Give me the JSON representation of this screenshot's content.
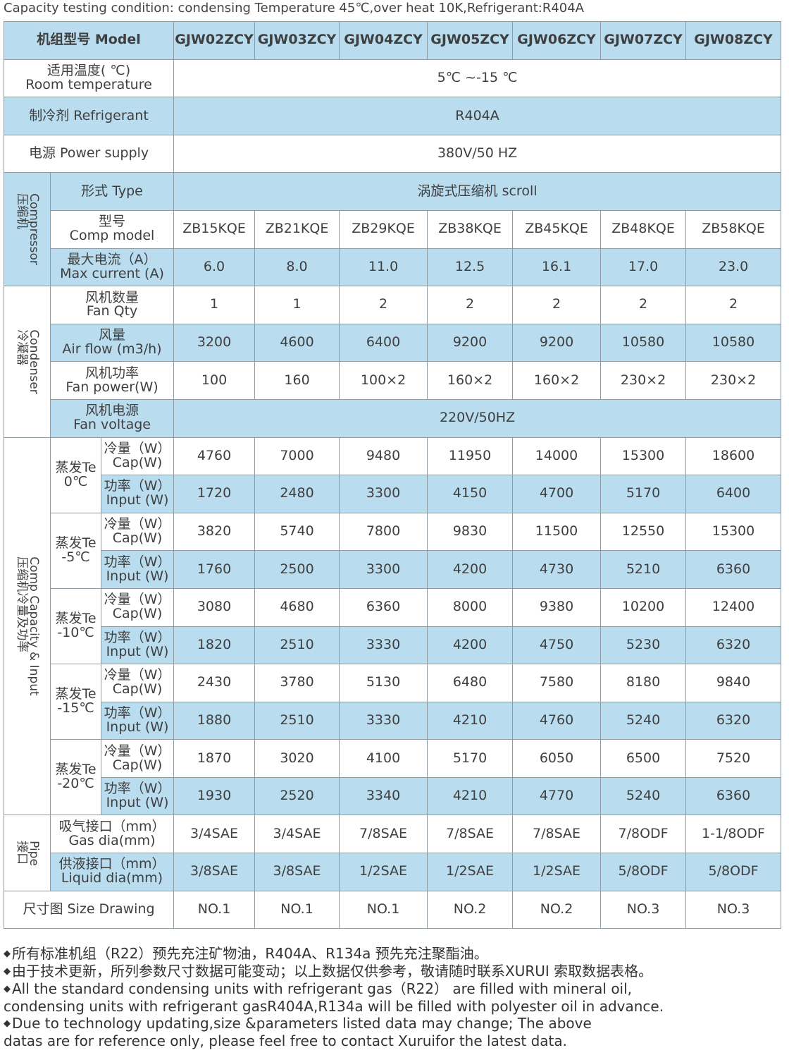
{
  "caption": "Capacity testing condition: condensing Temperature 45℃,over heat 10K,Refrigerant:R404A",
  "header": {
    "model_label": "机组型号  Model",
    "models": [
      "GJW02ZCY",
      "GJW03ZCY",
      "GJW04ZCY",
      "GJW05ZCY",
      "GJW06ZCY",
      "GJW07ZCY",
      "GJW08ZCY"
    ]
  },
  "general": {
    "room_temp": {
      "label_cn": "适用温度( ℃)",
      "label_en": "Room temperature",
      "value": "5℃ ~-15 ℃"
    },
    "refrigerant": {
      "label": "制冷剂 Refrigerant",
      "value": "R404A"
    },
    "power_supply": {
      "label": "电源  Power supply",
      "value": "380V/50 HZ"
    }
  },
  "compressor": {
    "group_cn": "压缩机",
    "group_en": "Compressor",
    "type": {
      "label": "形式  Type",
      "value": "涡旋式压缩机 scroll"
    },
    "model": {
      "label_cn": "型号",
      "label_en": "Comp model",
      "values": [
        "ZB15KQE",
        "ZB21KQE",
        "ZB29KQE",
        "ZB38KQE",
        "ZB45KQE",
        "ZB48KQE",
        "ZB58KQE"
      ]
    },
    "max_current": {
      "label_cn": "最大电流（A）",
      "label_en": "Max current (A)",
      "values": [
        "6.0",
        "8.0",
        "11.0",
        "12.5",
        "16.1",
        "17.0",
        "23.0"
      ]
    }
  },
  "condenser": {
    "group_cn": "冷凝器",
    "group_en": "Condenser",
    "fan_qty": {
      "label_cn": "风机数量",
      "label_en": "Fan Qty",
      "values": [
        "1",
        "1",
        "2",
        "2",
        "2",
        "2",
        "2"
      ]
    },
    "air_flow": {
      "label_cn": "风量",
      "label_en": "Air flow (m3/h)",
      "values": [
        "3200",
        "4600",
        "6400",
        "9200",
        "9200",
        "10580",
        "10580"
      ]
    },
    "fan_power": {
      "label_cn": "风机功率",
      "label_en": "Fan power(W)",
      "values": [
        "100",
        "160",
        "100×2",
        "160×2",
        "160×2",
        "230×2",
        "230×2"
      ]
    },
    "fan_voltage": {
      "label_cn": "风机电源",
      "label_en": "Fan voltage",
      "value": "220V/50HZ"
    }
  },
  "capacity": {
    "group_cn": "压缩机冷量及功率",
    "group_en": "Comp Capacity & Input",
    "cap_label_cn": "冷量（W）",
    "cap_label_en": "Cap(W)",
    "input_label_cn": "功率（W）",
    "input_label_en": "Input (W)",
    "blocks": [
      {
        "te_cn": "蒸发Te",
        "te_val": "0℃",
        "cap": [
          "4760",
          "7000",
          "9480",
          "11950",
          "14000",
          "15300",
          "18600"
        ],
        "input": [
          "1720",
          "2480",
          "3300",
          "4150",
          "4700",
          "5170",
          "6400"
        ]
      },
      {
        "te_cn": "蒸发Te",
        "te_val": "-5℃",
        "cap": [
          "3820",
          "5740",
          "7800",
          "9830",
          "11500",
          "12550",
          "15300"
        ],
        "input": [
          "1760",
          "2500",
          "3300",
          "4200",
          "4730",
          "5210",
          "6360"
        ]
      },
      {
        "te_cn": "蒸发Te",
        "te_val": "-10℃",
        "cap": [
          "3080",
          "4680",
          "6360",
          "8000",
          "9380",
          "10200",
          "12400"
        ],
        "input": [
          "1820",
          "2510",
          "3330",
          "4200",
          "4750",
          "5230",
          "6320"
        ]
      },
      {
        "te_cn": "蒸发Te",
        "te_val": "-15℃",
        "cap": [
          "2430",
          "3780",
          "5130",
          "6480",
          "7580",
          "8180",
          "9840"
        ],
        "input": [
          "1880",
          "2510",
          "3330",
          "4210",
          "4760",
          "5240",
          "6320"
        ]
      },
      {
        "te_cn": "蒸发Te",
        "te_val": "-20℃",
        "cap": [
          "1870",
          "3020",
          "4100",
          "5170",
          "6050",
          "6500",
          "7520"
        ],
        "input": [
          "1930",
          "2520",
          "3340",
          "4210",
          "4770",
          "5240",
          "6360"
        ]
      }
    ]
  },
  "pipe": {
    "group_cn": "接口",
    "group_en": "Pipe",
    "gas": {
      "label_cn": "吸气接口（mm）",
      "label_en": "Gas dia(mm)",
      "values": [
        "3/4SAE",
        "3/4SAE",
        "7/8SAE",
        "7/8SAE",
        "7/8SAE",
        "7/8ODF",
        "1-1/8ODF"
      ]
    },
    "liquid": {
      "label_cn": "供液接口（mm）",
      "label_en": "Liquid dia(mm)",
      "values": [
        "3/8SAE",
        "3/8SAE",
        "1/2SAE",
        "1/2SAE",
        "1/2SAE",
        "5/8ODF",
        "5/8ODF"
      ]
    }
  },
  "drawing": {
    "label": "尺寸图 Size Drawing",
    "values": [
      "NO.1",
      "NO.1",
      "NO.1",
      "NO.2",
      "NO.2",
      "NO.3",
      "NO.3"
    ]
  },
  "notes": {
    "bullet": "◆",
    "n1": "所有标准机组（R22）预先充注矿物油，R404A、R134a 预先充注聚酯油。",
    "n2": "由于技术更新，所列参数尺寸数据可能变动；以上数据仅供参考，敬请随时联系XURUI 索取数据表格。",
    "n3a": "All the standard condensing units with refrigerant gas（R22） are filled with mineral oil,",
    "n3b": "condensing units with refrigerant gasR404A,R134a will be filled with polyester oil in advance.",
    "n4a": "Due to technology updating,size &parameters listed data may change; The above",
    "n4b": "datas are for reference only, please feel free to contact Xuruifor the latest data."
  }
}
